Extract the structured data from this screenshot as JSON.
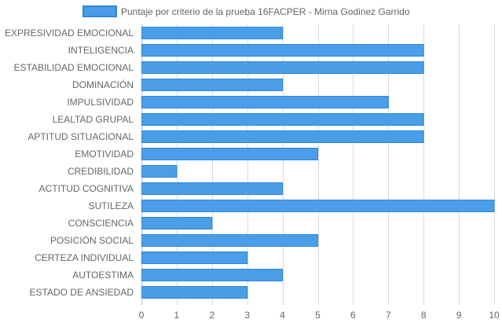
{
  "chart_data": {
    "type": "bar",
    "orientation": "horizontal",
    "title": "",
    "xlabel": "",
    "ylabel": "",
    "xlim": [
      0,
      10
    ],
    "x_ticks": [
      0,
      1,
      2,
      3,
      4,
      5,
      6,
      7,
      8,
      9,
      10
    ],
    "grid": true,
    "legend_position": "top-center",
    "colors": {
      "bar_fill": "#4a9ee8",
      "bar_stroke": "#2f86dc",
      "grid": "#d9d9d9",
      "text": "#666666"
    },
    "categories": [
      "EXPRESIVIDAD EMOCIONAL",
      "INTELIGENCIA",
      "ESTABILIDAD EMOCIONAL",
      "DOMINACIÓN",
      "IMPULSIVIDAD",
      "LEALTAD GRUPAL",
      "APTITUD SITUACIONAL",
      "EMOTIVIDAD",
      "CREDIBILIDAD",
      "ACTITUD COGNITIVA",
      "SUTILEZA",
      "CONSCIENCIA",
      "POSICIÓN SOCIAL",
      "CERTEZA INDIVIDUAL",
      "AUTOESTIMA",
      "ESTADO DE ANSIEDAD"
    ],
    "series": [
      {
        "name": "Puntaje por criterio de la prueba 16FACPER - Mirna Godinez Garrido",
        "values": [
          4,
          8,
          8,
          4,
          7,
          8,
          8,
          5,
          1,
          4,
          10,
          2,
          5,
          3,
          4,
          3
        ]
      }
    ]
  }
}
